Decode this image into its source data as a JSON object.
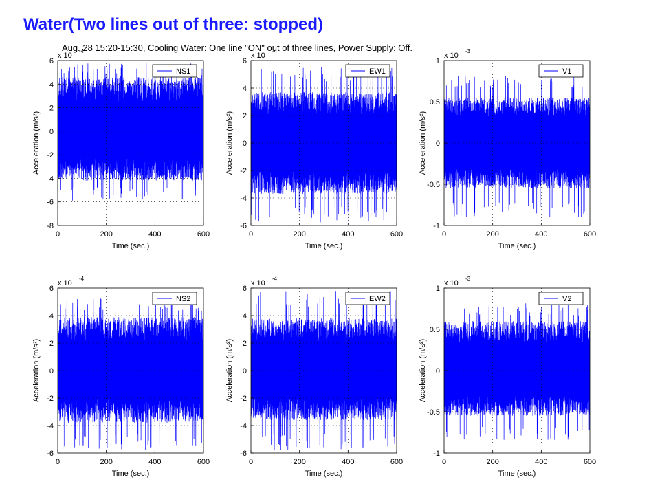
{
  "slide": {
    "title": "Water(Two lines out of three: stopped)",
    "subtitle": "Aug. 28 15:20-15:30, Cooling Water: One line \"ON\" out of three lines, Power Supply: Off."
  },
  "colors": {
    "title": "#1a1aff",
    "signal": "#0000ff"
  },
  "chart_data": [
    {
      "type": "line",
      "series": [
        {
          "name": "NS1"
        }
      ],
      "xlabel": "Time (sec.)",
      "ylabel": "Acceleration (m/s²)",
      "xlim": [
        0,
        600
      ],
      "ylim": [
        -8,
        6
      ],
      "exponent": "x 10",
      "exponent_power": "-4",
      "xticks": [
        "0",
        "200",
        "400",
        "600"
      ],
      "yticks": [
        "-8",
        "-6",
        "-4",
        "-2",
        "0",
        "2",
        "4",
        "6"
      ],
      "band": [
        -4.2,
        4.6
      ],
      "peaks": [
        -5.9,
        5.8
      ],
      "grid": "dotted",
      "legend": "top-right"
    },
    {
      "type": "line",
      "series": [
        {
          "name": "EW1"
        }
      ],
      "xlabel": "Time (sec.)",
      "ylabel": "Acceleration (m/s²)",
      "xlim": [
        0,
        600
      ],
      "ylim": [
        -6,
        6
      ],
      "exponent": "x 10",
      "exponent_power": "-4",
      "xticks": [
        "0",
        "200",
        "400",
        "600"
      ],
      "yticks": [
        "-6",
        "-4",
        "-2",
        "0",
        "2",
        "4",
        "6"
      ],
      "band": [
        -3.7,
        3.7
      ],
      "peaks": [
        -5.8,
        5.6
      ],
      "grid": "dotted",
      "legend": "top-right"
    },
    {
      "type": "line",
      "series": [
        {
          "name": "V1"
        }
      ],
      "xlabel": "Time (sec.)",
      "ylabel": "Acceleration (m/s²)",
      "xlim": [
        0,
        600
      ],
      "ylim": [
        -1,
        1
      ],
      "exponent": "x 10",
      "exponent_power": "-3",
      "xticks": [
        "0",
        "200",
        "400",
        "600"
      ],
      "yticks": [
        "-1",
        "-0.5",
        "0",
        "0.5",
        "1"
      ],
      "band": [
        -0.55,
        0.55
      ],
      "peaks": [
        -0.9,
        0.82
      ],
      "grid": "dotted",
      "legend": "top-right"
    },
    {
      "type": "line",
      "series": [
        {
          "name": "NS2"
        }
      ],
      "xlabel": "Time (sec.)",
      "ylabel": "Acceleration (m/s²)",
      "xlim": [
        0,
        600
      ],
      "ylim": [
        -6,
        6
      ],
      "exponent": "x 10",
      "exponent_power": "-4",
      "xticks": [
        "0",
        "200",
        "400",
        "600"
      ],
      "yticks": [
        "-6",
        "-4",
        "-2",
        "0",
        "2",
        "4",
        "6"
      ],
      "band": [
        -3.8,
        3.9
      ],
      "peaks": [
        -5.8,
        5.3
      ],
      "grid": "dotted",
      "legend": "top-right"
    },
    {
      "type": "line",
      "series": [
        {
          "name": "EW2"
        }
      ],
      "xlabel": "Time (sec.)",
      "ylabel": "Acceleration (m/s²)",
      "xlim": [
        0,
        600
      ],
      "ylim": [
        -6,
        6
      ],
      "exponent": "x 10",
      "exponent_power": "-4",
      "xticks": [
        "0",
        "200",
        "400",
        "600"
      ],
      "yticks": [
        "-6",
        "-4",
        "-2",
        "0",
        "2",
        "4",
        "6"
      ],
      "band": [
        -3.6,
        3.8
      ],
      "peaks": [
        -5.8,
        5.8
      ],
      "grid": "dotted",
      "legend": "top-right"
    },
    {
      "type": "line",
      "series": [
        {
          "name": "V2"
        }
      ],
      "xlabel": "Time (sec.)",
      "ylabel": "Acceleration (m/s²)",
      "xlim": [
        0,
        600
      ],
      "ylim": [
        -1,
        1
      ],
      "exponent": "x 10",
      "exponent_power": "-3",
      "xticks": [
        "0",
        "200",
        "400",
        "600"
      ],
      "yticks": [
        "-1",
        "-0.5",
        "0",
        "0.5",
        "1"
      ],
      "band": [
        -0.55,
        0.6
      ],
      "peaks": [
        -0.85,
        0.82
      ],
      "grid": "dotted",
      "legend": "top-right"
    }
  ]
}
